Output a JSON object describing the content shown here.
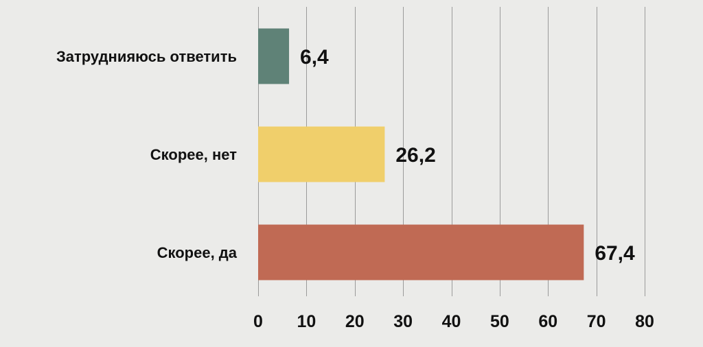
{
  "chart_data": {
    "type": "bar",
    "orientation": "horizontal",
    "categories": [
      "Затруднияюсь ответить",
      "Скорее, нет",
      "Скорее, да"
    ],
    "values": [
      6.4,
      26.2,
      67.4
    ],
    "value_labels": [
      "6,4",
      "26,2",
      "67,4"
    ],
    "colors": [
      "#5f8277",
      "#f0cf6b",
      "#c06a54"
    ],
    "xlim": [
      0,
      80
    ],
    "xticks": [
      0,
      10,
      20,
      30,
      40,
      50,
      60,
      70,
      80
    ],
    "grid": true,
    "legend": "none"
  },
  "colors": {
    "background": "#ebebe9",
    "grid": "#9a9a9a",
    "text": "#111111"
  }
}
